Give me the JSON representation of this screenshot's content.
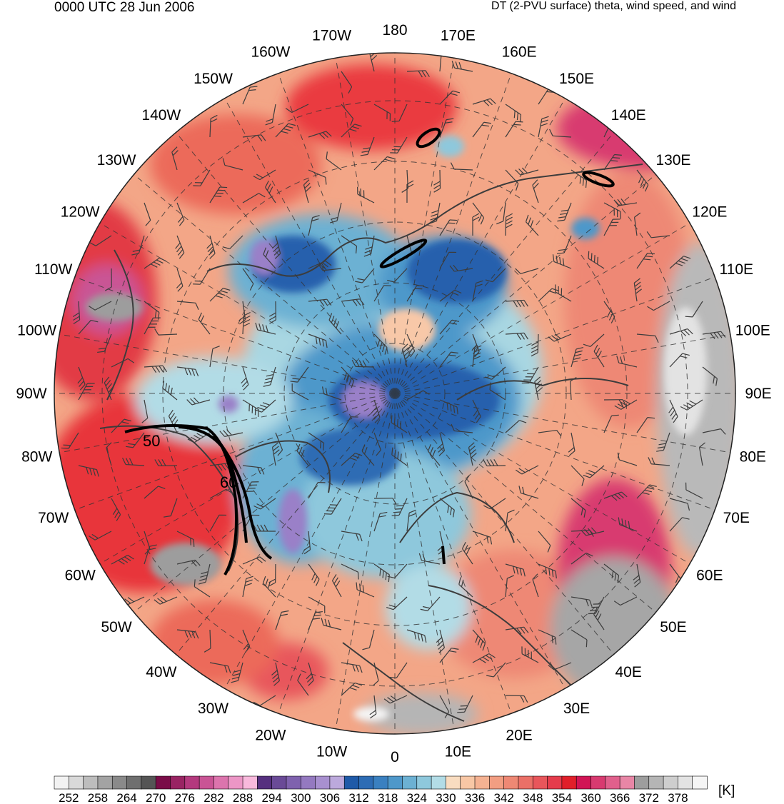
{
  "header": {
    "valid_time": "0000 UTC 28 Jun 2006",
    "product": "DT (2-PVU surface) theta, wind speed, and wind"
  },
  "map": {
    "projection": "north-polar-stereographic",
    "center_lon": 0,
    "lon_labels": [
      "180",
      "170E",
      "160E",
      "150E",
      "140E",
      "130E",
      "120E",
      "110E",
      "100E",
      "90E",
      "80E",
      "70E",
      "60E",
      "50E",
      "40E",
      "30E",
      "20E",
      "10E",
      "0",
      "10W",
      "20W",
      "30W",
      "40W",
      "50W",
      "60W",
      "70W",
      "80W",
      "90W",
      "100W",
      "110W",
      "120W",
      "130W",
      "140W",
      "150W",
      "160W",
      "170W"
    ],
    "wind_speed_contours": [
      {
        "label": "50",
        "region": "labrador-jet"
      },
      {
        "label": "60",
        "region": "labrador-jet"
      }
    ],
    "field_colors": {
      "warm_red": "#ee2a2a",
      "salmon": "#f4a585",
      "light_salmon": "#f8c8a8",
      "light_blue": "#a9d7e2",
      "mid_blue": "#4c8ac4",
      "dark_blue": "#2560ad",
      "lavender": "#9a80c8",
      "magenta": "#d24a82",
      "gray": "#9d9d9d"
    }
  },
  "colorbar": {
    "units": "[K]",
    "tick_labels": [
      "252",
      "258",
      "264",
      "270",
      "276",
      "282",
      "288",
      "294",
      "300",
      "306",
      "312",
      "318",
      "324",
      "330",
      "336",
      "342",
      "348",
      "354",
      "360",
      "366",
      "372",
      "378"
    ],
    "colors": [
      "#f2f2f2",
      "#d9d9d9",
      "#bdbdbd",
      "#a3a3a3",
      "#8a8a8a",
      "#6f6f6f",
      "#555555",
      "#7a0d48",
      "#992463",
      "#b4397e",
      "#c95495",
      "#dc74ad",
      "#ec96c6",
      "#f8b9dc",
      "#56307f",
      "#6a4a97",
      "#7f62ae",
      "#9479c0",
      "#a890cf",
      "#bca9dc",
      "#1f5aa8",
      "#2d6cb4",
      "#3a80c0",
      "#4e98ca",
      "#6cb1d3",
      "#8ec8dc",
      "#b2dce6",
      "#f9dcc0",
      "#f8c7a5",
      "#f5b292",
      "#f29e82",
      "#ee8874",
      "#eb7067",
      "#e8565b",
      "#e53c4c",
      "#e11f2a",
      "#d11455",
      "#d83a70",
      "#e0608c",
      "#e886a6",
      "#9d9d9d",
      "#b5b5b5",
      "#cecece",
      "#e3e3e3",
      "#f5f5f5"
    ]
  }
}
